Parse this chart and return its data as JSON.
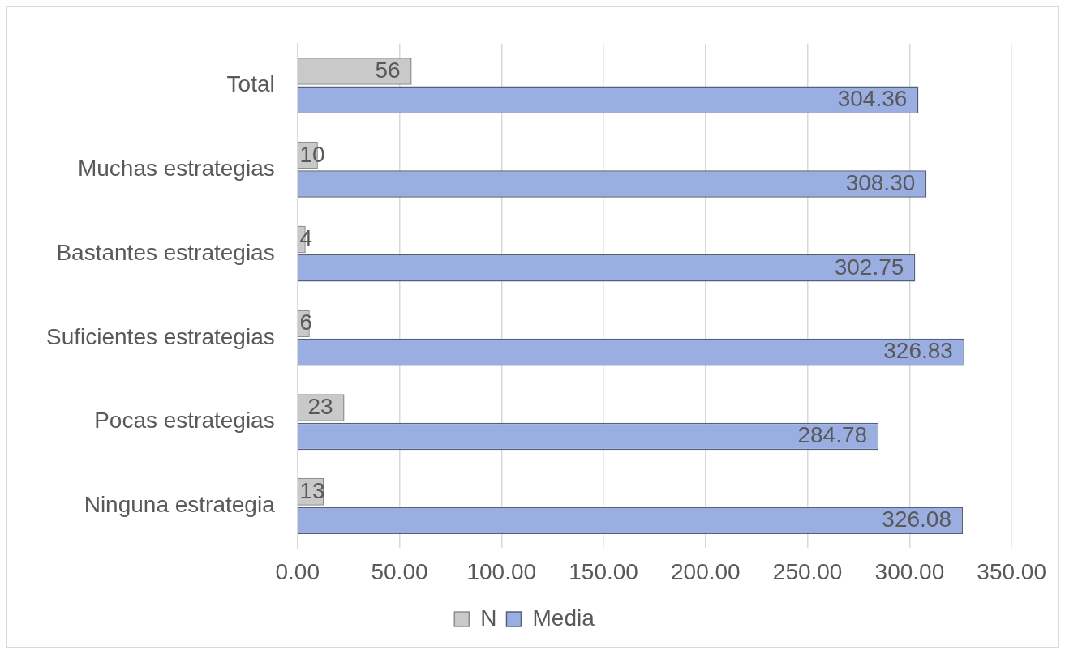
{
  "chart_data": {
    "type": "bar",
    "orientation": "horizontal",
    "categories": [
      "Total",
      "Muchas estrategias",
      "Bastantes estrategias",
      "Suficientes estrategias",
      "Pocas estrategias",
      "Ninguna estrategia"
    ],
    "series": [
      {
        "name": "N",
        "color": "#c9c9c9",
        "values": [
          56,
          10,
          4,
          6,
          23,
          13
        ],
        "value_labels": [
          "56",
          "10",
          "4",
          "6",
          "23",
          "13"
        ]
      },
      {
        "name": "Media",
        "color": "#9aaee2",
        "values": [
          304.36,
          308.3,
          302.75,
          326.83,
          284.78,
          326.08
        ],
        "value_labels": [
          "304.36",
          "308.30",
          "302.75",
          "326.83",
          "284.78",
          "326.08"
        ]
      }
    ],
    "xlim": [
      0,
      350
    ],
    "xticks": [
      {
        "value": 0,
        "label": "0.00"
      },
      {
        "value": 50,
        "label": "50.00"
      },
      {
        "value": 100,
        "label": "100.00"
      },
      {
        "value": 150,
        "label": "150.00"
      },
      {
        "value": 200,
        "label": "200.00"
      },
      {
        "value": 250,
        "label": "250.00"
      },
      {
        "value": 300,
        "label": "300.00"
      },
      {
        "value": 350,
        "label": "350.00"
      }
    ],
    "grid": "x",
    "legend": "bottom"
  }
}
